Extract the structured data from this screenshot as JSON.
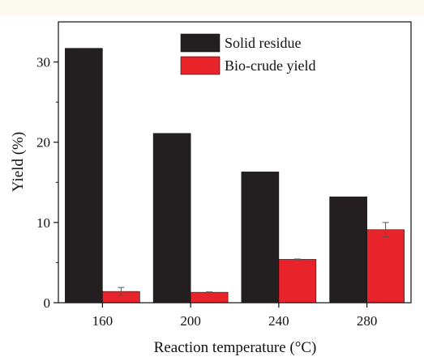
{
  "chart_data": {
    "type": "bar",
    "xlabel": "Reaction temperature (°C)",
    "ylabel": "Yield (%)",
    "categories": [
      "160",
      "200",
      "240",
      "280"
    ],
    "ylim": [
      0,
      35
    ],
    "yticks": [
      0,
      10,
      20,
      30
    ],
    "grid": false,
    "legend_position": "top-right",
    "series": [
      {
        "name": "Solid residue",
        "color": "#231f20",
        "values": [
          31.7,
          21.1,
          16.3,
          13.2
        ],
        "errors": [
          0,
          0,
          0,
          0
        ]
      },
      {
        "name": "Bio-crude yield",
        "color": "#e8242a",
        "values": [
          1.4,
          1.3,
          5.4,
          9.1
        ],
        "errors": [
          0.5,
          0.05,
          0.05,
          0.9
        ]
      }
    ]
  }
}
